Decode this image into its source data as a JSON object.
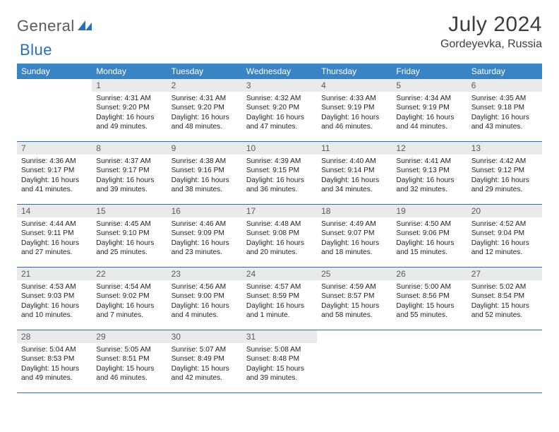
{
  "brand": {
    "part1": "General",
    "part2": "Blue"
  },
  "header": {
    "title": "July 2024",
    "location": "Gordeyevka, Russia"
  },
  "colors": {
    "header_bg": "#3a84c4",
    "header_text": "#ffffff",
    "daynum_bg": "#e9eaec",
    "daynum_text": "#5a5a5a",
    "rule": "#2a6fb5",
    "body_text": "#222222",
    "title_text": "#3d3d3d",
    "logo_gray": "#5a5a5a",
    "logo_blue": "#2a6fb5"
  },
  "day_headers": [
    "Sunday",
    "Monday",
    "Tuesday",
    "Wednesday",
    "Thursday",
    "Friday",
    "Saturday"
  ],
  "weeks": [
    [
      {
        "n": "",
        "sr": "",
        "ss": "",
        "dl1": "",
        "dl2": ""
      },
      {
        "n": "1",
        "sr": "Sunrise: 4:31 AM",
        "ss": "Sunset: 9:20 PM",
        "dl1": "Daylight: 16 hours",
        "dl2": "and 49 minutes."
      },
      {
        "n": "2",
        "sr": "Sunrise: 4:31 AM",
        "ss": "Sunset: 9:20 PM",
        "dl1": "Daylight: 16 hours",
        "dl2": "and 48 minutes."
      },
      {
        "n": "3",
        "sr": "Sunrise: 4:32 AM",
        "ss": "Sunset: 9:20 PM",
        "dl1": "Daylight: 16 hours",
        "dl2": "and 47 minutes."
      },
      {
        "n": "4",
        "sr": "Sunrise: 4:33 AM",
        "ss": "Sunset: 9:19 PM",
        "dl1": "Daylight: 16 hours",
        "dl2": "and 46 minutes."
      },
      {
        "n": "5",
        "sr": "Sunrise: 4:34 AM",
        "ss": "Sunset: 9:19 PM",
        "dl1": "Daylight: 16 hours",
        "dl2": "and 44 minutes."
      },
      {
        "n": "6",
        "sr": "Sunrise: 4:35 AM",
        "ss": "Sunset: 9:18 PM",
        "dl1": "Daylight: 16 hours",
        "dl2": "and 43 minutes."
      }
    ],
    [
      {
        "n": "7",
        "sr": "Sunrise: 4:36 AM",
        "ss": "Sunset: 9:17 PM",
        "dl1": "Daylight: 16 hours",
        "dl2": "and 41 minutes."
      },
      {
        "n": "8",
        "sr": "Sunrise: 4:37 AM",
        "ss": "Sunset: 9:17 PM",
        "dl1": "Daylight: 16 hours",
        "dl2": "and 39 minutes."
      },
      {
        "n": "9",
        "sr": "Sunrise: 4:38 AM",
        "ss": "Sunset: 9:16 PM",
        "dl1": "Daylight: 16 hours",
        "dl2": "and 38 minutes."
      },
      {
        "n": "10",
        "sr": "Sunrise: 4:39 AM",
        "ss": "Sunset: 9:15 PM",
        "dl1": "Daylight: 16 hours",
        "dl2": "and 36 minutes."
      },
      {
        "n": "11",
        "sr": "Sunrise: 4:40 AM",
        "ss": "Sunset: 9:14 PM",
        "dl1": "Daylight: 16 hours",
        "dl2": "and 34 minutes."
      },
      {
        "n": "12",
        "sr": "Sunrise: 4:41 AM",
        "ss": "Sunset: 9:13 PM",
        "dl1": "Daylight: 16 hours",
        "dl2": "and 32 minutes."
      },
      {
        "n": "13",
        "sr": "Sunrise: 4:42 AM",
        "ss": "Sunset: 9:12 PM",
        "dl1": "Daylight: 16 hours",
        "dl2": "and 29 minutes."
      }
    ],
    [
      {
        "n": "14",
        "sr": "Sunrise: 4:44 AM",
        "ss": "Sunset: 9:11 PM",
        "dl1": "Daylight: 16 hours",
        "dl2": "and 27 minutes."
      },
      {
        "n": "15",
        "sr": "Sunrise: 4:45 AM",
        "ss": "Sunset: 9:10 PM",
        "dl1": "Daylight: 16 hours",
        "dl2": "and 25 minutes."
      },
      {
        "n": "16",
        "sr": "Sunrise: 4:46 AM",
        "ss": "Sunset: 9:09 PM",
        "dl1": "Daylight: 16 hours",
        "dl2": "and 23 minutes."
      },
      {
        "n": "17",
        "sr": "Sunrise: 4:48 AM",
        "ss": "Sunset: 9:08 PM",
        "dl1": "Daylight: 16 hours",
        "dl2": "and 20 minutes."
      },
      {
        "n": "18",
        "sr": "Sunrise: 4:49 AM",
        "ss": "Sunset: 9:07 PM",
        "dl1": "Daylight: 16 hours",
        "dl2": "and 18 minutes."
      },
      {
        "n": "19",
        "sr": "Sunrise: 4:50 AM",
        "ss": "Sunset: 9:06 PM",
        "dl1": "Daylight: 16 hours",
        "dl2": "and 15 minutes."
      },
      {
        "n": "20",
        "sr": "Sunrise: 4:52 AM",
        "ss": "Sunset: 9:04 PM",
        "dl1": "Daylight: 16 hours",
        "dl2": "and 12 minutes."
      }
    ],
    [
      {
        "n": "21",
        "sr": "Sunrise: 4:53 AM",
        "ss": "Sunset: 9:03 PM",
        "dl1": "Daylight: 16 hours",
        "dl2": "and 10 minutes."
      },
      {
        "n": "22",
        "sr": "Sunrise: 4:54 AM",
        "ss": "Sunset: 9:02 PM",
        "dl1": "Daylight: 16 hours",
        "dl2": "and 7 minutes."
      },
      {
        "n": "23",
        "sr": "Sunrise: 4:56 AM",
        "ss": "Sunset: 9:00 PM",
        "dl1": "Daylight: 16 hours",
        "dl2": "and 4 minutes."
      },
      {
        "n": "24",
        "sr": "Sunrise: 4:57 AM",
        "ss": "Sunset: 8:59 PM",
        "dl1": "Daylight: 16 hours",
        "dl2": "and 1 minute."
      },
      {
        "n": "25",
        "sr": "Sunrise: 4:59 AM",
        "ss": "Sunset: 8:57 PM",
        "dl1": "Daylight: 15 hours",
        "dl2": "and 58 minutes."
      },
      {
        "n": "26",
        "sr": "Sunrise: 5:00 AM",
        "ss": "Sunset: 8:56 PM",
        "dl1": "Daylight: 15 hours",
        "dl2": "and 55 minutes."
      },
      {
        "n": "27",
        "sr": "Sunrise: 5:02 AM",
        "ss": "Sunset: 8:54 PM",
        "dl1": "Daylight: 15 hours",
        "dl2": "and 52 minutes."
      }
    ],
    [
      {
        "n": "28",
        "sr": "Sunrise: 5:04 AM",
        "ss": "Sunset: 8:53 PM",
        "dl1": "Daylight: 15 hours",
        "dl2": "and 49 minutes."
      },
      {
        "n": "29",
        "sr": "Sunrise: 5:05 AM",
        "ss": "Sunset: 8:51 PM",
        "dl1": "Daylight: 15 hours",
        "dl2": "and 46 minutes."
      },
      {
        "n": "30",
        "sr": "Sunrise: 5:07 AM",
        "ss": "Sunset: 8:49 PM",
        "dl1": "Daylight: 15 hours",
        "dl2": "and 42 minutes."
      },
      {
        "n": "31",
        "sr": "Sunrise: 5:08 AM",
        "ss": "Sunset: 8:48 PM",
        "dl1": "Daylight: 15 hours",
        "dl2": "and 39 minutes."
      },
      {
        "n": "",
        "sr": "",
        "ss": "",
        "dl1": "",
        "dl2": ""
      },
      {
        "n": "",
        "sr": "",
        "ss": "",
        "dl1": "",
        "dl2": ""
      },
      {
        "n": "",
        "sr": "",
        "ss": "",
        "dl1": "",
        "dl2": ""
      }
    ]
  ]
}
